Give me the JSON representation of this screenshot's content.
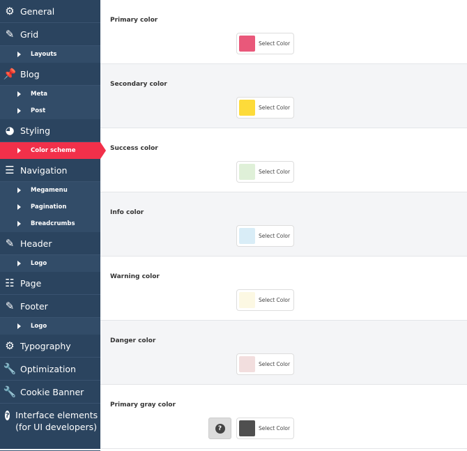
{
  "sidebar": {
    "items": [
      {
        "label": "General",
        "icon": "gear-icon",
        "glyph": "⚙"
      },
      {
        "label": "Grid",
        "icon": "brush-icon",
        "glyph": "✎",
        "subs": [
          {
            "label": "Layouts"
          }
        ]
      },
      {
        "label": "Blog",
        "icon": "pin-icon",
        "glyph": "📌",
        "subs": [
          {
            "label": "Meta"
          },
          {
            "label": "Post"
          }
        ]
      },
      {
        "label": "Styling",
        "icon": "palette-icon",
        "glyph": "◕",
        "subs": [
          {
            "label": "Color scheme",
            "active": true
          }
        ]
      },
      {
        "label": "Navigation",
        "icon": "menu-icon",
        "glyph": "☰",
        "subs": [
          {
            "label": "Megamenu"
          },
          {
            "label": "Pagination"
          },
          {
            "label": "Breadcrumbs"
          }
        ]
      },
      {
        "label": "Header",
        "icon": "brush-icon",
        "glyph": "✎",
        "subs": [
          {
            "label": "Logo"
          }
        ]
      },
      {
        "label": "Page",
        "icon": "text-lines-icon",
        "glyph": "☷"
      },
      {
        "label": "Footer",
        "icon": "brush-icon",
        "glyph": "✎",
        "subs": [
          {
            "label": "Logo"
          }
        ]
      },
      {
        "label": "Typography",
        "icon": "gear-icon",
        "glyph": "⚙"
      },
      {
        "label": "Optimization",
        "icon": "wrench-icon",
        "glyph": "🔧"
      },
      {
        "label": "Cookie Banner",
        "icon": "wrench-icon",
        "glyph": "🔧"
      },
      {
        "label": "Interface elements (for UI developers)",
        "icon": "question-circle-icon",
        "glyph": "?"
      }
    ]
  },
  "main": {
    "select_label": "Select Color",
    "help_label": "?",
    "rows": [
      {
        "label": "Primary color",
        "color": "#e9587a"
      },
      {
        "label": "Secondary color",
        "color": "#fddb3a"
      },
      {
        "label": "Success color",
        "color": "#dff0d8"
      },
      {
        "label": "Info color",
        "color": "#d9edf7"
      },
      {
        "label": "Warning color",
        "color": "#fcf8e3"
      },
      {
        "label": "Danger color",
        "color": "#f2dede"
      },
      {
        "label": "Primary gray color",
        "color": "#4f4f4f",
        "help": true
      }
    ]
  }
}
